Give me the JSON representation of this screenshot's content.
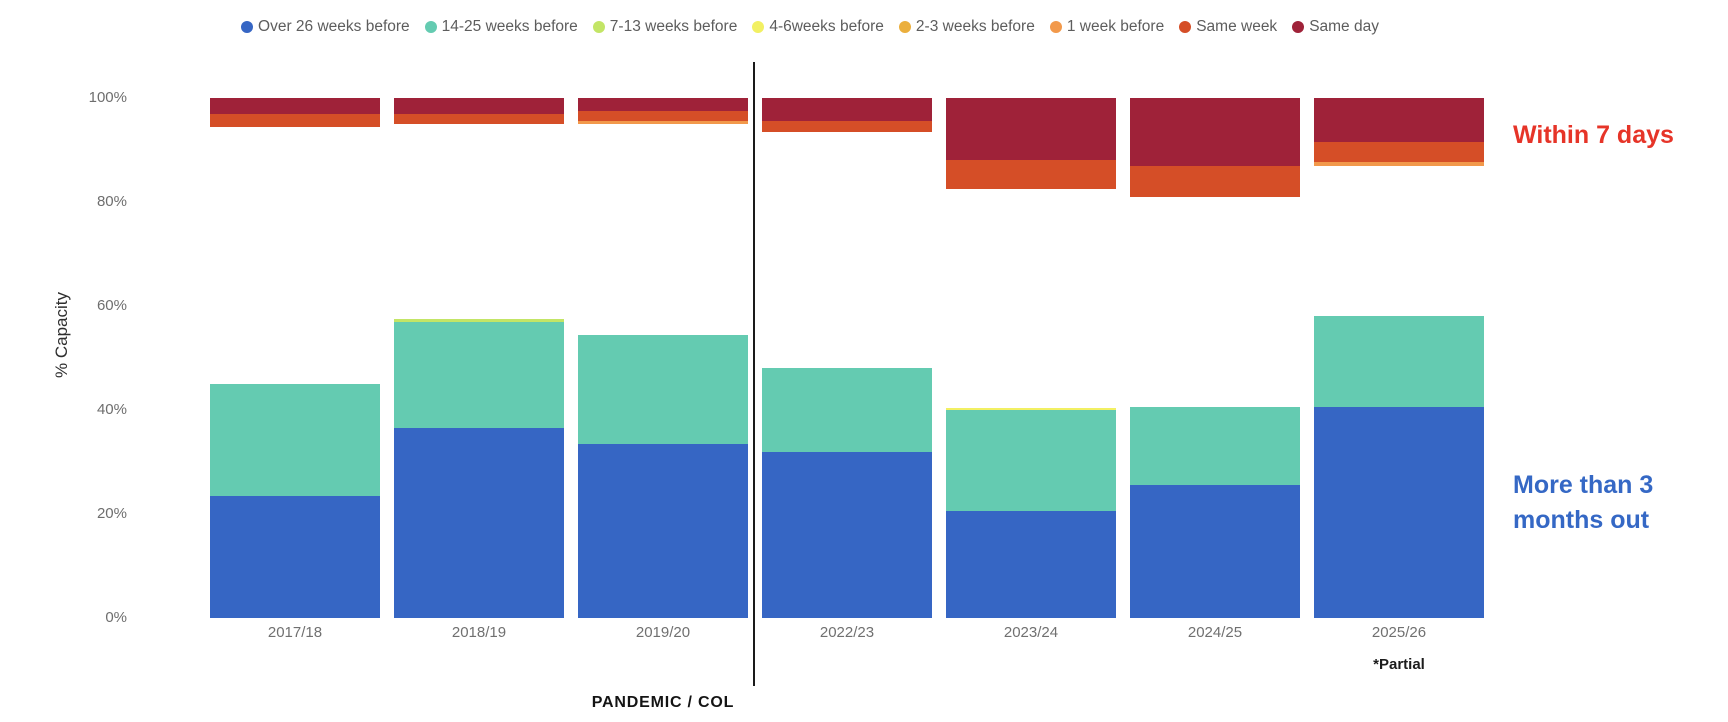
{
  "chart_data": {
    "type": "bar",
    "stacked": true,
    "unit": "%",
    "ylabel": "% Capacity",
    "ylim": [
      0,
      100
    ],
    "grid": false,
    "legend_position": "top-center",
    "categories": [
      "2017/18",
      "2018/19",
      "2019/20",
      "2022/23",
      "2023/24",
      "2024/25",
      "2025/26"
    ],
    "series": [
      {
        "name": "Over 26 weeks before",
        "color": "#3666C4",
        "anchor": "bottom",
        "values": [
          23.5,
          36.5,
          33.5,
          32,
          20.5,
          25.5,
          40.5
        ]
      },
      {
        "name": "14-25 weeks before",
        "color": "#64CBB1",
        "anchor": "bottom",
        "values": [
          21.5,
          20.5,
          21,
          16,
          19.5,
          15,
          17.5
        ]
      },
      {
        "name": "7-13 weeks before",
        "color": "#C3E566",
        "anchor": "bottom",
        "values": [
          0,
          0.5,
          0,
          0,
          0,
          0,
          0
        ]
      },
      {
        "name": "4-6weeks before",
        "color": "#F2F063",
        "anchor": "bottom",
        "values": [
          0,
          0,
          0,
          0,
          0.4,
          0,
          0
        ]
      },
      {
        "name": "2-3 weeks before",
        "color": "#EBAF3D",
        "anchor": "bottom",
        "values": [
          0,
          0,
          0,
          0,
          0,
          0,
          0
        ]
      },
      {
        "name": "1 week before",
        "color": "#F2994B",
        "anchor": "top",
        "values": [
          0,
          0,
          0.5,
          0,
          0,
          0,
          0.6
        ]
      },
      {
        "name": "Same week",
        "color": "#D54E27",
        "anchor": "top",
        "values": [
          2.5,
          2,
          2,
          2,
          5.5,
          6,
          4
        ]
      },
      {
        "name": "Same day",
        "color": "#9F2239",
        "anchor": "top",
        "values": [
          3,
          3,
          2.5,
          4.5,
          12,
          13,
          8.4
        ]
      }
    ]
  },
  "y_axis": {
    "title": "% Capacity",
    "tick_labels": [
      "100%",
      "80%",
      "60%",
      "40%",
      "20%",
      "0%"
    ],
    "tick_values": [
      100,
      80,
      60,
      40,
      20,
      0
    ]
  },
  "annotations": {
    "within_7_days": {
      "text": "Within 7 days",
      "color": "#E63428"
    },
    "more_than_3_months": {
      "line1": "More than 3",
      "line2": "months out",
      "color": "#3568C5"
    },
    "divider_label": "PANDEMIC / COL",
    "partial_note": "*Partial"
  }
}
